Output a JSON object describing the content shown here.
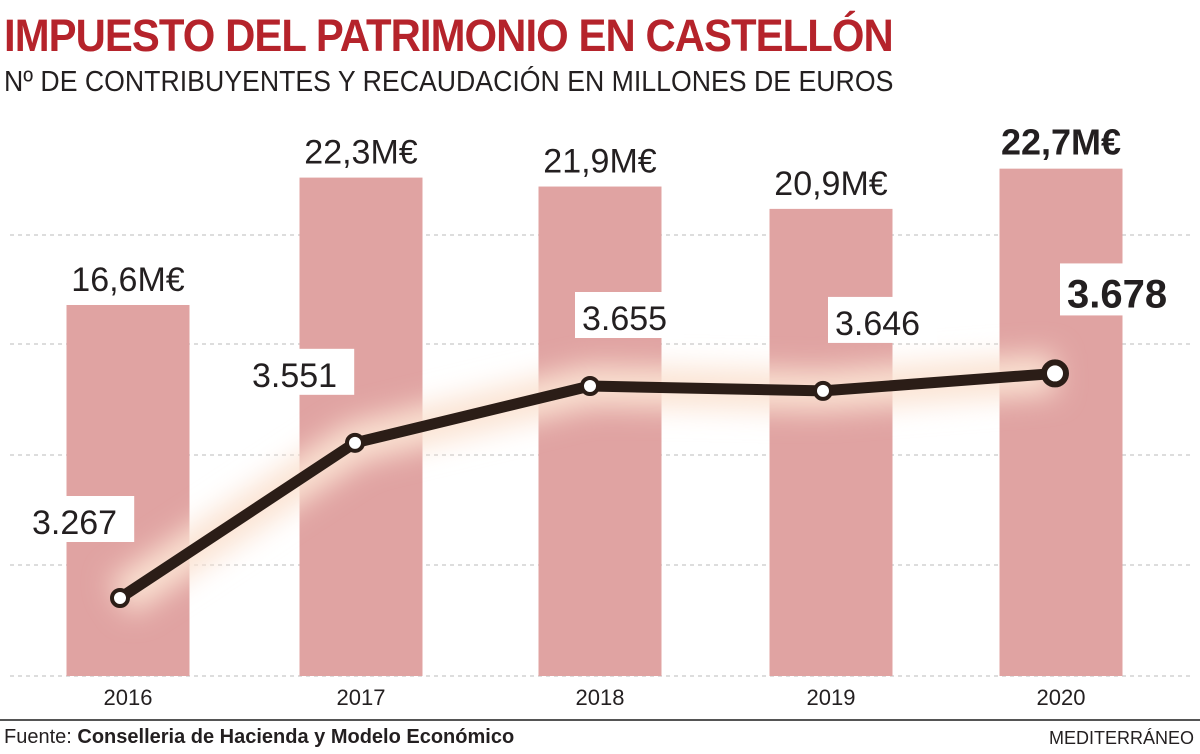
{
  "chart_data": {
    "type": "bar+line",
    "title": "IMPUESTO DEL PATRIMONIO EN CASTELLÓN",
    "subtitle": "Nº DE CONTRIBUYENTES Y RECAUDACIÓN EN MILLONES DE EUROS",
    "categories": [
      "2016",
      "2017",
      "2018",
      "2019",
      "2020"
    ],
    "series": [
      {
        "type": "bar",
        "values": [
          16.6,
          22.3,
          21.9,
          20.9,
          22.7
        ],
        "labels": [
          "16,6M€",
          "22,3M€",
          "21,9M€",
          "20,9M€",
          "22,7M€"
        ],
        "color": "#e0a3a2"
      },
      {
        "type": "line",
        "values": [
          3267,
          3551,
          3655,
          3646,
          3678
        ],
        "labels": [
          "3.267",
          "3.551",
          "3.655",
          "3.646",
          "3.678"
        ],
        "color": "#2b1d17"
      }
    ],
    "grid": true,
    "highlight": "2020"
  },
  "footer": {
    "source_prefix": "Fuente:",
    "source_name": "Conselleria de Hacienda y Modelo Económico",
    "brand": "MEDITERRÁNEO"
  }
}
